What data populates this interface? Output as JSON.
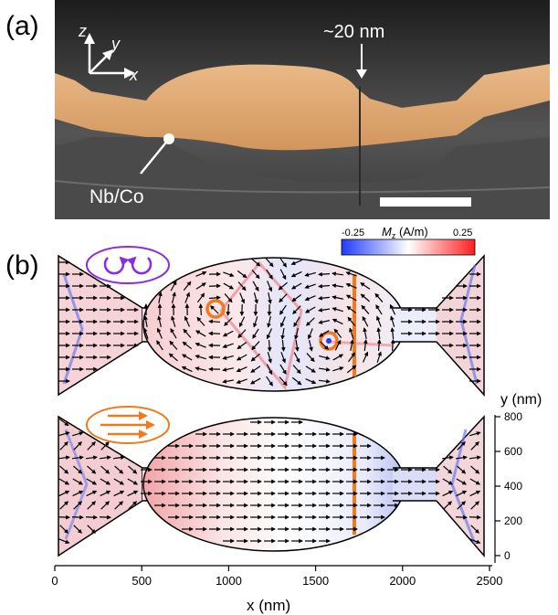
{
  "panel_a": {
    "label": "(a)",
    "axis_z": "z",
    "axis_y": "y",
    "axis_x": "x",
    "gap_label": "~20 nm",
    "material_label": "Nb/Co"
  },
  "panel_b": {
    "label": "(b)",
    "colorbar": {
      "min_label": "-0.25",
      "max_label": "0.25",
      "title_symbol": "M",
      "title_sub": "z",
      "title_unit": " (A/m)",
      "colors": [
        "#1f3bff",
        "#ffffff",
        "#ff1f1f"
      ]
    },
    "y_axis": {
      "label": "y (nm)",
      "ticks": [
        "0",
        "200",
        "400",
        "600",
        "800"
      ]
    },
    "x_axis": {
      "label": "x (nm)",
      "ticks": [
        "0",
        "500",
        "1000",
        "1500",
        "2000",
        "2500"
      ]
    },
    "state_top_icon": "counter-rotating-vortices-icon",
    "state_bottom_icon": "uniform-magnetization-icon",
    "marker_color": "#f07a1e",
    "vortex_icon_color": "#8a2be2"
  },
  "chart_data": {
    "type": "heatmap",
    "title": "",
    "xlabel": "x (nm)",
    "ylabel": "y (nm)",
    "xlim": [
      0,
      2500
    ],
    "ylim": [
      0,
      800
    ],
    "colorbar_range": [
      -0.25,
      0.25
    ],
    "colorbar_label": "Mz (A/m)",
    "panels": [
      "vortex state",
      "uniform state"
    ],
    "cut_position_x_nm": 1740
  }
}
